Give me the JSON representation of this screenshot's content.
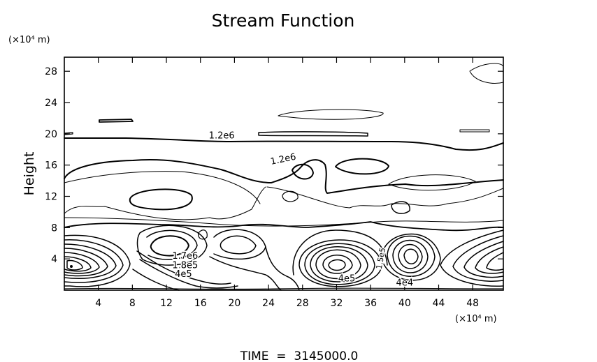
{
  "chart_data": {
    "type": "contour",
    "title": "Stream Function",
    "ylabel": "Height",
    "x_unit": "(×10⁴ m)",
    "y_unit": "(×10⁴ m)",
    "xlim": [
      0,
      51.6
    ],
    "ylim": [
      0,
      29.8
    ],
    "x_ticks": [
      4,
      8,
      12,
      16,
      20,
      24,
      28,
      32,
      36,
      40,
      44,
      48
    ],
    "y_ticks": [
      4,
      8,
      12,
      16,
      20,
      24,
      28
    ],
    "grid": false,
    "contour_labels": [
      {
        "text": "1.2e6",
        "x": 18.5,
        "y": 19.4
      },
      {
        "text": "1.2e6",
        "x": 25.8,
        "y": 16.4
      },
      {
        "text": "1.7e6",
        "x": 14.2,
        "y": 4.0
      },
      {
        "text": "1.8e5",
        "x": 14.2,
        "y": 2.8
      },
      {
        "text": "4e5",
        "x": 14.0,
        "y": 1.7
      },
      {
        "text": "4e5",
        "x": 33.2,
        "y": 1.1
      },
      {
        "text": "4e4",
        "x": 40.0,
        "y": 0.6
      },
      {
        "text": "1.5e5",
        "x": 37.5,
        "y": 4.0
      }
    ]
  },
  "footer": {
    "time_label": "TIME  =  3145000.0"
  },
  "colors": {
    "ink": "#000000",
    "background": "#ffffff"
  }
}
